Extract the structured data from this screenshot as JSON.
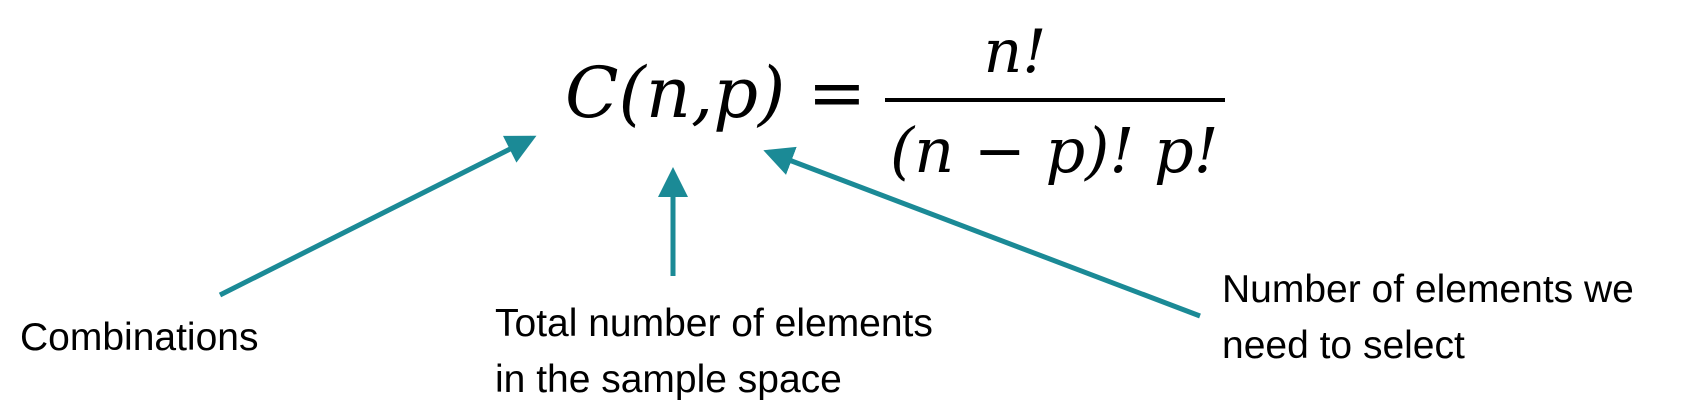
{
  "formula": {
    "lhs": "C(n,p) =",
    "numerator": "n!",
    "denominator": "(n − p)! p!"
  },
  "labels": {
    "combinations": "Combinations",
    "total_line1": "Total number of elements",
    "total_line2": "in the sample space",
    "select_line1": "Number of elements we",
    "select_line2": "need to select"
  },
  "colors": {
    "arrow": "#1b8a96",
    "text": "#000000"
  }
}
